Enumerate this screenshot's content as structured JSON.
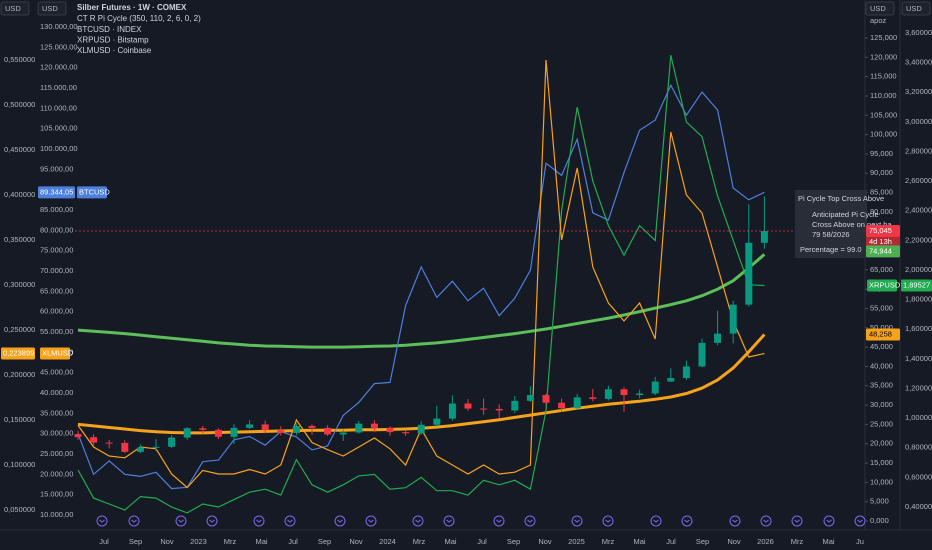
{
  "chart_data": {
    "type": "candlestick",
    "title": "Silber Futures · 1W · COMEX",
    "indicator": "CT R Pi Cycle (350, 110, 2, 6, 0, 2)",
    "axis_headers": [
      "USD",
      "USD",
      "USD",
      "USD"
    ],
    "scale_mode": "apoz",
    "x_labels": [
      "Jul",
      "Sep",
      "Nov",
      "2023",
      "Mrz",
      "Mai",
      "Jul",
      "Sep",
      "Nov",
      "2024",
      "Mrz",
      "Mai",
      "Jul",
      "Sep",
      "Nov",
      "2025",
      "Mrz",
      "Mai",
      "Jul",
      "Sep",
      "Nov",
      "2026",
      "Mrz",
      "Mai",
      "Ju"
    ],
    "open": [
      22.5,
      21.7,
      20.3,
      20.2,
      17.9,
      19.0,
      19.2,
      21.6,
      24.0,
      23.6,
      21.8,
      24.1,
      25.0,
      23.5,
      22.8,
      24.6,
      24.1,
      22.4,
      22.9,
      25.2,
      24.1,
      23.0,
      22.7,
      24.9,
      26.5,
      30.4,
      29.1,
      29.0,
      28.6,
      31.1,
      32.6,
      30.6,
      29.2,
      32.0,
      31.6,
      34.1,
      32.6,
      33.0,
      36.1,
      37.0,
      40.0,
      46.1,
      48.5,
      56.0,
      72.0
    ],
    "high": [
      23.4,
      22.5,
      21.0,
      20.9,
      19.8,
      21.2,
      22.2,
      24.3,
      24.6,
      24.0,
      25.0,
      26.1,
      26.0,
      24.5,
      25.3,
      25.0,
      24.8,
      23.7,
      25.9,
      26.1,
      24.5,
      23.6,
      25.8,
      29.8,
      32.5,
      31.5,
      31.7,
      30.2,
      32.4,
      34.9,
      32.9,
      31.7,
      32.9,
      34.2,
      35.0,
      34.6,
      34.0,
      37.3,
      39.5,
      41.5,
      47.2,
      54.4,
      57.0,
      82.0,
      84.0
    ],
    "low": [
      21.0,
      19.6,
      18.8,
      17.6,
      17.5,
      18.1,
      18.9,
      21.0,
      22.6,
      21.2,
      19.9,
      23.8,
      22.7,
      22.1,
      22.2,
      22.3,
      22.0,
      20.7,
      22.6,
      23.0,
      22.1,
      22.0,
      22.3,
      24.5,
      26.0,
      28.5,
      27.5,
      26.5,
      28.0,
      30.8,
      29.7,
      28.3,
      28.8,
      31.0,
      31.2,
      28.3,
      31.8,
      32.6,
      36.0,
      36.5,
      39.8,
      45.5,
      46.0,
      55.5,
      70.5
    ],
    "close": [
      21.7,
      20.3,
      20.2,
      17.9,
      19.0,
      19.2,
      21.6,
      24.0,
      23.6,
      21.8,
      24.1,
      25.0,
      23.5,
      22.8,
      24.6,
      24.1,
      22.4,
      22.9,
      25.2,
      24.1,
      23.0,
      22.7,
      24.9,
      26.5,
      30.4,
      29.1,
      29.0,
      28.6,
      31.1,
      32.6,
      30.6,
      29.2,
      32.0,
      31.6,
      34.1,
      32.6,
      33.0,
      36.1,
      37.0,
      40.0,
      46.1,
      48.5,
      56.0,
      72.0,
      75.045
    ],
    "up_color": "#089981",
    "down_color": "#f23645",
    "ylim": [
      0,
      125
    ],
    "yticks": [
      {
        "value": 0,
        "label": "0,000"
      },
      {
        "value": 5,
        "label": "5,000"
      },
      {
        "value": 10,
        "label": "10,000"
      },
      {
        "value": 15,
        "label": "15,000"
      },
      {
        "value": 20,
        "label": "20,000"
      },
      {
        "value": 25,
        "label": "25,000"
      },
      {
        "value": 30,
        "label": "30,000"
      },
      {
        "value": 35,
        "label": "35,000"
      },
      {
        "value": 40,
        "label": "40,000"
      },
      {
        "value": 45,
        "label": "45,000"
      },
      {
        "value": 50,
        "label": "50,000"
      },
      {
        "value": 55,
        "label": "55,000"
      },
      {
        "value": 60,
        "label": "60,000"
      },
      {
        "value": 65,
        "label": "65,000"
      },
      {
        "value": 70,
        "label": "70,000"
      },
      {
        "value": 75,
        "label": "75,000"
      },
      {
        "value": 80,
        "label": "80,000"
      },
      {
        "value": 85,
        "label": "85,000"
      },
      {
        "value": 90,
        "label": "90,000"
      },
      {
        "value": 95,
        "label": "95,000"
      },
      {
        "value": 100,
        "label": "100,000"
      },
      {
        "value": 105,
        "label": "105,000"
      },
      {
        "value": 110,
        "label": "110,000"
      },
      {
        "value": 115,
        "label": "115,000"
      },
      {
        "value": 120,
        "label": "120,000"
      },
      {
        "value": 125,
        "label": "125,000"
      }
    ],
    "last_label": "75,045",
    "countdown": "4d 13h",
    "ma_lines": [
      {
        "color": "#5cbf5a",
        "values": [
          49.4,
          49.1,
          48.8,
          48.5,
          48.1,
          47.7,
          47.3,
          46.9,
          46.5,
          46.1,
          45.8,
          45.5,
          45.3,
          45.2,
          45.1,
          45.0,
          45.0,
          45.0,
          45.1,
          45.2,
          45.3,
          45.5,
          45.8,
          46.1,
          46.5,
          47.0,
          47.5,
          48.0,
          48.5,
          49.1,
          49.7,
          50.4,
          51.1,
          51.8,
          52.5,
          53.3,
          54.2,
          55.1,
          56.0,
          57.0,
          58.3,
          60.0,
          62.2,
          65.5,
          69.0
        ]
      },
      {
        "color": "#f7a21b",
        "values": [
          25.0,
          24.6,
          24.2,
          23.8,
          23.4,
          23.1,
          22.9,
          22.8,
          22.8,
          22.9,
          23.0,
          23.1,
          23.2,
          23.3,
          23.4,
          23.5,
          23.5,
          23.5,
          23.6,
          23.6,
          23.7,
          23.8,
          24.0,
          24.3,
          24.7,
          25.2,
          25.7,
          26.2,
          26.8,
          27.4,
          28.0,
          28.6,
          29.2,
          29.7,
          30.2,
          30.6,
          31.0,
          31.5,
          32.1,
          33.0,
          34.4,
          36.5,
          39.6,
          43.8,
          48.258
        ],
        "last_label": "48,258"
      }
    ],
    "overlays": [
      {
        "name": "BTCUSD · INDEX",
        "tag": "BTCUSD",
        "color": "#4d7fdc",
        "last_label": "89.344,05",
        "values": [
          30000,
          20000,
          23300,
          20000,
          19500,
          20500,
          16500,
          16800,
          23100,
          23500,
          28500,
          29300,
          27200,
          30500,
          29200,
          26000,
          27000,
          34500,
          37700,
          42300,
          42600,
          61500,
          71000,
          63500,
          67500,
          62700,
          65800,
          59000,
          63300,
          70200,
          96500,
          93500,
          102400,
          84300,
          82500,
          94200,
          104600,
          107100,
          115700,
          108300,
          114000,
          109600,
          90400,
          87500,
          89344.05
        ],
        "ylim": [
          10000,
          130000
        ],
        "yticks": [
          {
            "value": 10000,
            "label": "10.000,00"
          },
          {
            "value": 15000,
            "label": "15.000,00"
          },
          {
            "value": 20000,
            "label": "20.000,00"
          },
          {
            "value": 25000,
            "label": "25.000,00"
          },
          {
            "value": 30000,
            "label": "30.000,00"
          },
          {
            "value": 35000,
            "label": "35.000,00"
          },
          {
            "value": 40000,
            "label": "40.000,00"
          },
          {
            "value": 45000,
            "label": "45.000,00"
          },
          {
            "value": 50000,
            "label": "50.000,00"
          },
          {
            "value": 55000,
            "label": "55.000,00"
          },
          {
            "value": 60000,
            "label": "60.000,00"
          },
          {
            "value": 65000,
            "label": "65.000,00"
          },
          {
            "value": 70000,
            "label": "70.000,00"
          },
          {
            "value": 75000,
            "label": "75.000,00"
          },
          {
            "value": 80000,
            "label": "80.000,00"
          },
          {
            "value": 85000,
            "label": "85.000,00"
          },
          {
            "value": 90000,
            "label": "90.000,00"
          },
          {
            "value": 95000,
            "label": "95.000,00"
          },
          {
            "value": 100000,
            "label": "100.000,00"
          },
          {
            "value": 105000,
            "label": "105.000,00"
          },
          {
            "value": 110000,
            "label": "110.000,00"
          },
          {
            "value": 115000,
            "label": "115.000,00"
          },
          {
            "value": 120000,
            "label": "120.000,00"
          },
          {
            "value": 125000,
            "label": "125.000,00"
          },
          {
            "value": 130000,
            "label": "130.000,00"
          }
        ]
      },
      {
        "name": "XRPUSD · Bitstamp",
        "tag": "XRPUSD",
        "color": "#22ab50",
        "last_label": "1,89527",
        "values": [
          0.65,
          0.46,
          0.42,
          0.38,
          0.47,
          0.46,
          0.4,
          0.36,
          0.42,
          0.4,
          0.45,
          0.5,
          0.52,
          0.48,
          0.72,
          0.55,
          0.5,
          0.55,
          0.61,
          0.62,
          0.52,
          0.53,
          0.6,
          0.51,
          0.51,
          0.48,
          0.58,
          0.55,
          0.58,
          0.52,
          1.05,
          2.4,
          3.1,
          2.6,
          2.3,
          2.1,
          2.3,
          2.2,
          3.45,
          3.0,
          2.9,
          2.5,
          2.2,
          1.9,
          1.89527
        ],
        "ylim": [
          0.4,
          3.6
        ],
        "yticks": [
          {
            "value": 0.4,
            "label": "0,40000"
          },
          {
            "value": 0.6,
            "label": "0,60000"
          },
          {
            "value": 0.8,
            "label": "0,80000"
          },
          {
            "value": 1.0,
            "label": "1,00000"
          },
          {
            "value": 1.2,
            "label": "1,20000"
          },
          {
            "value": 1.4,
            "label": "1,40000"
          },
          {
            "value": 1.6,
            "label": "1,60000"
          },
          {
            "value": 1.8,
            "label": "1,80000"
          },
          {
            "value": 2.0,
            "label": "2,00000"
          },
          {
            "value": 2.2,
            "label": "2,20000"
          },
          {
            "value": 2.4,
            "label": "2,40000"
          },
          {
            "value": 2.6,
            "label": "2,60000"
          },
          {
            "value": 2.8,
            "label": "2,80000"
          },
          {
            "value": 3.0,
            "label": "3,00000"
          },
          {
            "value": 3.2,
            "label": "3,20000"
          },
          {
            "value": 3.4,
            "label": "3,40000"
          },
          {
            "value": 3.6,
            "label": "3,60000"
          }
        ]
      },
      {
        "name": "XLMUSD · Coinbase",
        "tag": "XLMUSD",
        "color": "#f7a21b",
        "last_label": "0,223899",
        "values": [
          0.144,
          0.12,
          0.11,
          0.108,
          0.12,
          0.118,
          0.09,
          0.075,
          0.094,
          0.09,
          0.09,
          0.095,
          0.09,
          0.1,
          0.15,
          0.125,
          0.117,
          0.11,
          0.12,
          0.13,
          0.118,
          0.1,
          0.14,
          0.11,
          0.1,
          0.09,
          0.1,
          0.09,
          0.092,
          0.1,
          0.55,
          0.35,
          0.43,
          0.32,
          0.28,
          0.26,
          0.28,
          0.24,
          0.47,
          0.4,
          0.38,
          0.32,
          0.26,
          0.22,
          0.223899
        ],
        "ylim": [
          0.05,
          0.55
        ],
        "yticks": [
          {
            "value": 0.05,
            "label": "0,050000"
          },
          {
            "value": 0.1,
            "label": "0,100000"
          },
          {
            "value": 0.15,
            "label": "0,150000"
          },
          {
            "value": 0.2,
            "label": "0,200000"
          },
          {
            "value": 0.25,
            "label": "0,250000"
          },
          {
            "value": 0.3,
            "label": "0,300000"
          },
          {
            "value": 0.35,
            "label": "0,350000"
          },
          {
            "value": 0.4,
            "label": "0,400000"
          },
          {
            "value": 0.45,
            "label": "0,450000"
          },
          {
            "value": 0.5,
            "label": "0,500000"
          },
          {
            "value": 0.55,
            "label": "0,550000"
          }
        ]
      }
    ],
    "signal": {
      "title": "Pi Cycle Top Cross Above",
      "lines": [
        "Anticipated Pi Cycle",
        "Cross Above on next ba",
        "79 58/2026",
        "Percentage = 99.0"
      ],
      "value": {
        "value": 74.944,
        "label": "74,944"
      }
    }
  }
}
